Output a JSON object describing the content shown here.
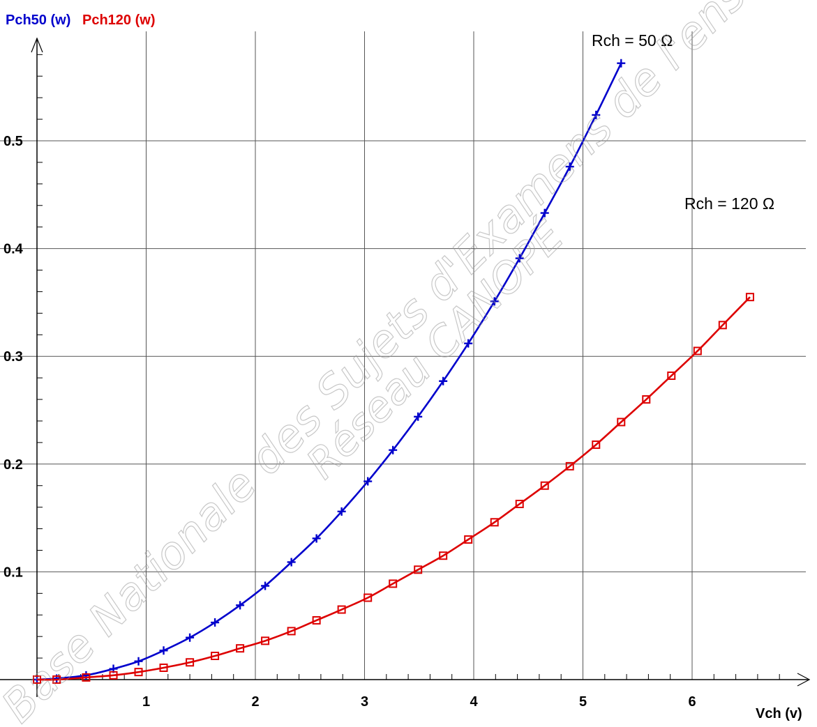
{
  "chart_data": {
    "type": "line",
    "xlabel": "Vch (v)",
    "ylabel_series": [
      "Pch50 (w)",
      "Pch120 (w)"
    ],
    "xlim": [
      0,
      7
    ],
    "ylim": [
      0,
      0.57
    ],
    "x_ticks": [
      "1",
      "2",
      "3",
      "4",
      "5",
      "6"
    ],
    "y_ticks": [
      "0.1",
      "0.2",
      "0.3",
      "0.4",
      "0.5"
    ],
    "x_tick_values": [
      1,
      2,
      3,
      4,
      5,
      6
    ],
    "y_tick_values": [
      0.1,
      0.2,
      0.3,
      0.4,
      0.5
    ],
    "grid": true,
    "series": [
      {
        "name": "Pch50 (w)",
        "color": "#0000cc",
        "marker": "plus",
        "annotation": "Rch = 50 Ω",
        "x": [
          0,
          0.18,
          0.45,
          0.7,
          0.93,
          1.16,
          1.4,
          1.63,
          1.86,
          2.09,
          2.33,
          2.56,
          2.79,
          3.03,
          3.26,
          3.49,
          3.72,
          3.95,
          4.19,
          4.42,
          4.65,
          4.88,
          5.12,
          5.35
        ],
        "y": [
          0,
          0.001,
          0.004,
          0.01,
          0.017,
          0.027,
          0.039,
          0.053,
          0.069,
          0.087,
          0.109,
          0.131,
          0.156,
          0.184,
          0.213,
          0.244,
          0.277,
          0.312,
          0.351,
          0.391,
          0.433,
          0.476,
          0.524,
          0.572
        ]
      },
      {
        "name": "Pch120 (w)",
        "color": "#dd0000",
        "marker": "square",
        "annotation": "Rch = 120 Ω",
        "x": [
          0,
          0.18,
          0.45,
          0.7,
          0.93,
          1.16,
          1.4,
          1.63,
          1.86,
          2.09,
          2.33,
          2.56,
          2.79,
          3.03,
          3.26,
          3.49,
          3.72,
          3.95,
          4.19,
          4.42,
          4.65,
          4.88,
          5.12,
          5.35,
          5.58,
          5.81,
          6.05,
          6.28,
          6.53
        ],
        "y": [
          0,
          0,
          0.002,
          0.004,
          0.007,
          0.011,
          0.016,
          0.022,
          0.029,
          0.036,
          0.045,
          0.055,
          0.065,
          0.076,
          0.089,
          0.102,
          0.115,
          0.13,
          0.146,
          0.163,
          0.18,
          0.198,
          0.218,
          0.239,
          0.26,
          0.282,
          0.305,
          0.329,
          0.355
        ]
      }
    ]
  },
  "watermark": {
    "line1": "Base Nationale des Sujets d'Examens de l'enseignement professionnel",
    "line2": "Réseau CANOPÉ"
  }
}
